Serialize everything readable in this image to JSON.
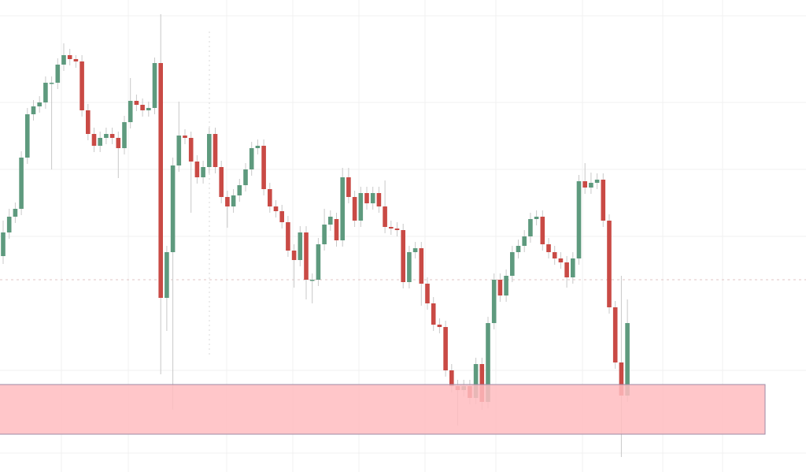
{
  "chart_data": {
    "type": "candlestick",
    "open": [
      274,
      304,
      324,
      334,
      399,
      454,
      464,
      469,
      494,
      494,
      517,
      529,
      524,
      521,
      459,
      429,
      414,
      424,
      429,
      424,
      411,
      444,
      471,
      466,
      459,
      462,
      519,
      221,
      279,
      389,
      427,
      424,
      394,
      374,
      387,
      429,
      387,
      349,
      337,
      351,
      364,
      384,
      411,
      414,
      359,
      337,
      331,
      317,
      281,
      269,
      304,
      244,
      244,
      289,
      314,
      321,
      294,
      374,
      349,
      319,
      354,
      341,
      354,
      337,
      311,
      309,
      307,
      241,
      279,
      284,
      239,
      214,
      187,
      184,
      129,
      109,
      104,
      109,
      94,
      137,
      89,
      189,
      244,
      224,
      249,
      279,
      287,
      299,
      321,
      324,
      289,
      279,
      271,
      266,
      247,
      271,
      369,
      361,
      367,
      371,
      319,
      209,
      139,
      97
    ],
    "high": [
      319,
      334,
      342,
      407,
      462,
      472,
      477,
      502,
      502,
      525,
      544,
      537,
      529,
      529,
      467,
      437,
      432,
      437,
      437,
      432,
      452,
      500,
      479,
      474,
      470,
      526,
      581,
      287,
      399,
      470,
      435,
      432,
      402,
      395,
      437,
      437,
      395,
      357,
      359,
      372,
      392,
      419,
      422,
      422,
      367,
      345,
      339,
      325,
      289,
      312,
      312,
      252,
      297,
      334,
      332,
      329,
      386,
      386,
      357,
      362,
      362,
      362,
      362,
      370,
      319,
      317,
      315,
      287,
      292,
      292,
      247,
      222,
      195,
      192,
      137,
      117,
      117,
      117,
      145,
      145,
      197,
      252,
      252,
      257,
      287,
      295,
      307,
      329,
      332,
      332,
      297,
      287,
      279,
      274,
      279,
      377,
      392,
      380,
      379,
      379,
      327,
      217,
      249,
      219
    ],
    "low": [
      264,
      296,
      316,
      326,
      391,
      446,
      456,
      461,
      384,
      486,
      509,
      516,
      513,
      451,
      421,
      406,
      406,
      416,
      416,
      373,
      403,
      436,
      458,
      451,
      451,
      454,
      124,
      179,
      79,
      381,
      416,
      329,
      366,
      366,
      379,
      379,
      341,
      310,
      329,
      343,
      356,
      376,
      403,
      351,
      329,
      323,
      309,
      273,
      234,
      261,
      219,
      214,
      236,
      281,
      306,
      286,
      286,
      341,
      311,
      311,
      333,
      333,
      329,
      303,
      301,
      299,
      233,
      233,
      271,
      211,
      206,
      179,
      176,
      121,
      101,
      59,
      96,
      86,
      86,
      79,
      81,
      181,
      216,
      216,
      241,
      271,
      279,
      291,
      313,
      281,
      271,
      263,
      258,
      234,
      239,
      263,
      353,
      353,
      359,
      311,
      201,
      131,
      19,
      89
    ],
    "close": [
      304,
      324,
      334,
      399,
      454,
      464,
      469,
      494,
      494,
      517,
      529,
      524,
      521,
      459,
      429,
      414,
      424,
      429,
      424,
      411,
      444,
      471,
      466,
      459,
      462,
      519,
      221,
      279,
      389,
      427,
      424,
      394,
      374,
      387,
      429,
      387,
      349,
      337,
      351,
      364,
      384,
      411,
      414,
      359,
      337,
      331,
      317,
      281,
      269,
      304,
      244,
      244,
      289,
      314,
      324,
      294,
      374,
      349,
      319,
      354,
      341,
      354,
      337,
      311,
      309,
      307,
      241,
      279,
      284,
      239,
      214,
      187,
      184,
      129,
      109,
      104,
      109,
      94,
      137,
      89,
      189,
      244,
      224,
      249,
      279,
      287,
      299,
      321,
      324,
      289,
      279,
      271,
      266,
      247,
      271,
      369,
      361,
      367,
      371,
      319,
      209,
      139,
      97,
      189
    ],
    "up_color": "#5e9a7e",
    "down_color": "#c94a45",
    "ylim": [
      0,
      599
    ],
    "zone": [
      48,
      111
    ],
    "zone_color": "#ffbcbf",
    "hline": 244
  }
}
